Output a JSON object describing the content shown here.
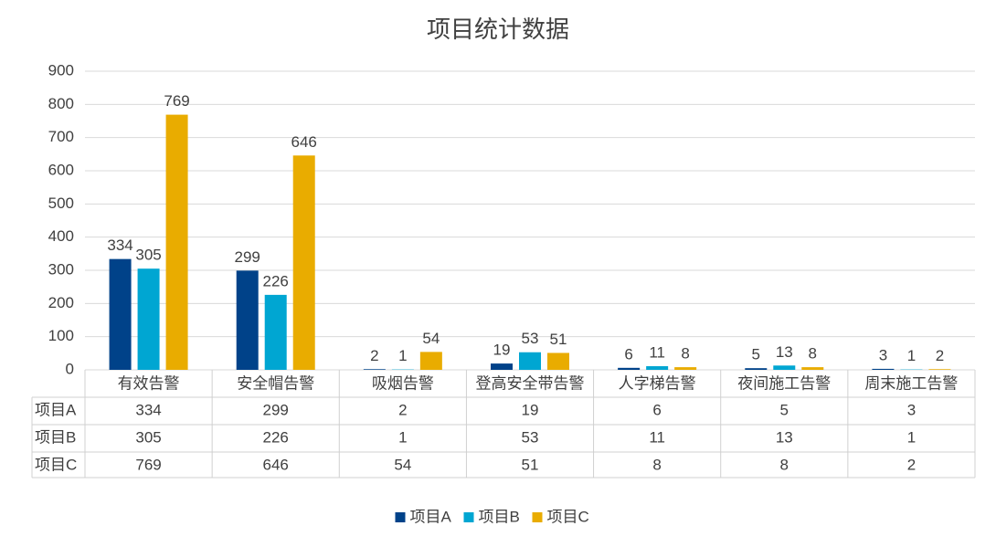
{
  "chart_data": {
    "type": "bar",
    "title": "项目统计数据",
    "categories": [
      "有效告警",
      "安全帽告警",
      "吸烟告警",
      "登高安全带告警",
      "人字梯告警",
      "夜间施工告警",
      "周末施工告警"
    ],
    "series": [
      {
        "name": "项目A",
        "color": "#004289",
        "values": [
          334,
          299,
          2,
          19,
          6,
          5,
          3
        ]
      },
      {
        "name": "项目B",
        "color": "#00a6d2",
        "values": [
          305,
          226,
          1,
          53,
          11,
          13,
          1
        ]
      },
      {
        "name": "项目C",
        "color": "#e9ac00",
        "values": [
          769,
          646,
          54,
          51,
          8,
          8,
          2
        ]
      }
    ],
    "ylim": [
      0,
      900
    ],
    "yticks": [
      0,
      100,
      200,
      300,
      400,
      500,
      600,
      700,
      800,
      900
    ],
    "grid": true,
    "data_table": true,
    "legend": "bottom"
  }
}
